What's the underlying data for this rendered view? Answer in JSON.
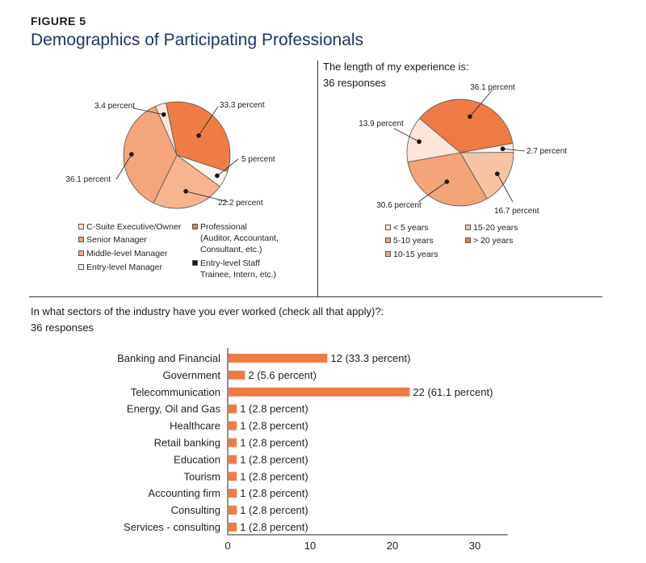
{
  "figure": {
    "label": "FIGURE 5",
    "title": "Demographics of Participating Professionals"
  },
  "colors": {
    "c_suite": "#fce7da",
    "senior_manager": "#f4a272",
    "middle_manager": "#f5a57a",
    "entry_manager": "#fce7da",
    "professional": "#ef7c45",
    "entry_staff": "#1a1a1a",
    "exp_lt5": "#fde6d8",
    "exp_5_10": "#f4a476",
    "exp_10_15": "#f4a476",
    "exp_15_20": "#f8c3a2",
    "exp_gt20": "#ef7b44",
    "bar": "#ef7c45"
  },
  "pie1": {
    "legend": {
      "c_suite": "C-Suite Executive/Owner",
      "senior_manager": "Senior Manager",
      "middle_manager": "Middle-level Manager",
      "entry_manager": "Entry-level Manager",
      "professional_1": "Professional",
      "professional_2": "(Auditor, Accountant,",
      "professional_3": "Consultant, etc.)",
      "entry_staff_1": "Entry-level Staff",
      "entry_staff_2": "Trainee, Intern, etc.)"
    }
  },
  "pie2": {
    "question": "The length of my experience is:",
    "responses": "36 responses",
    "legend": {
      "lt5": "< 5 years",
      "5_10": "5-10 years",
      "10_15": "10-15 years",
      "15_20": "15-20 years",
      "gt20": "> 20 years"
    }
  },
  "bars": {
    "question": "In what sectors of the industry have you ever worked (check all that apply)?:",
    "responses": "36 responses"
  },
  "chart_data": [
    {
      "type": "pie",
      "slices": [
        {
          "name": "C-Suite Executive/Owner",
          "value": 3.4,
          "label": "3.4 percent"
        },
        {
          "name": "Professional",
          "value": 33.3,
          "label": "33.3 percent"
        },
        {
          "name": "Entry-level Staff",
          "value": 5,
          "label": "5 percent"
        },
        {
          "name": "Senior Manager",
          "value": 22.2,
          "label": "22.2 percent"
        },
        {
          "name": "Middle-level Manager",
          "value": 36.1,
          "label": "36.1 percent"
        }
      ]
    },
    {
      "type": "pie",
      "title": "The length of my experience is:",
      "subtitle": "36 responses",
      "slices": [
        {
          "name": "> 20 years",
          "value": 36.1,
          "label": "36.1 percent"
        },
        {
          "name": "< 5 years",
          "value": 2.7,
          "label": "2.7 percent"
        },
        {
          "name": "15-20 years",
          "value": 16.7,
          "label": "16.7 percent"
        },
        {
          "name": "5-10 years",
          "value": 30.6,
          "label": "30.6 percent"
        },
        {
          "name": "10-15 years",
          "value": 13.9,
          "label": "13.9 percent"
        }
      ]
    },
    {
      "type": "bar",
      "orientation": "horizontal",
      "title": "In what sectors of the industry have you ever worked (check all that apply)?:",
      "subtitle": "36 responses",
      "categories": [
        "Banking and Financial",
        "Government",
        "Telecommunication",
        "Energy, Oil and Gas",
        "Healthcare",
        "Retail banking",
        "Education",
        "Tourism",
        "Accounting firm",
        "Consulting",
        "Services - consulting"
      ],
      "values": [
        12,
        2,
        22,
        1,
        1,
        1,
        1,
        1,
        1,
        1,
        1
      ],
      "data_labels": [
        "12 (33.3 percent)",
        "2 (5.6 percent)",
        "22 (61.1 percent)",
        "1 (2.8 percent)",
        "1 (2.8 percent)",
        "1 (2.8 percent)",
        "1 (2.8 percent)",
        "1 (2.8 percent)",
        "1 (2.8 percent)",
        "1 (2.8 percent)",
        "1 (2.8 percent)"
      ],
      "xlim": [
        0,
        34
      ],
      "xticks": [
        "0",
        "10",
        "20",
        "30"
      ],
      "grid": false
    }
  ]
}
